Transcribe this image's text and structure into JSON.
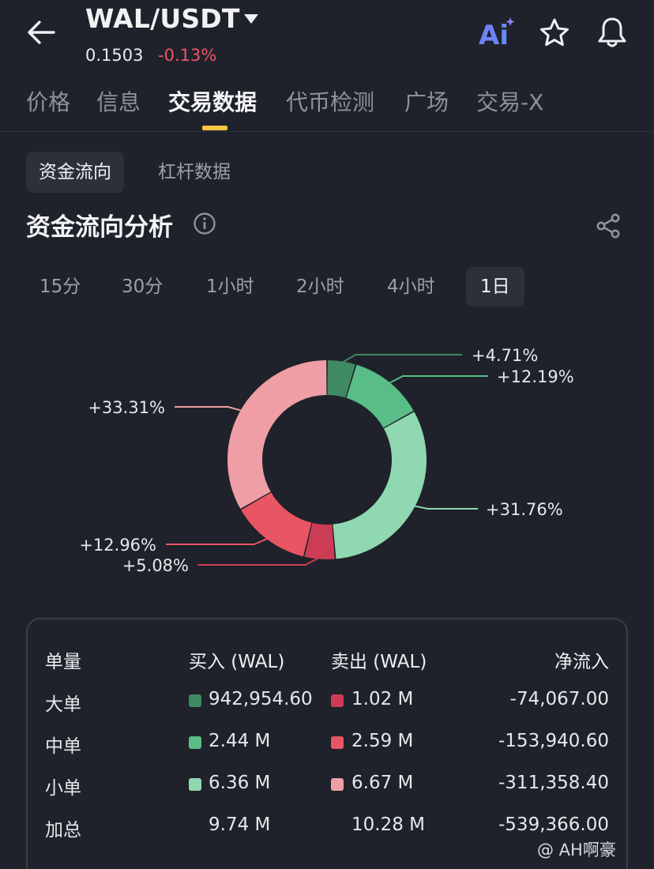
{
  "header": {
    "pair": "WAL/USDT",
    "price": "0.1503",
    "change": "-0.13%",
    "ai_label": "Ai"
  },
  "tabs": [
    "价格",
    "信息",
    "交易数据",
    "代币检测",
    "广场",
    "交易-X"
  ],
  "active_tab": "交易数据",
  "subtabs": [
    "资金流向",
    "杠杆数据"
  ],
  "section_title": "资金流向分析",
  "intervals": [
    "15分",
    "30分",
    "1小时",
    "2小时",
    "4小时",
    "1日"
  ],
  "active_interval": "1日",
  "colors": {
    "large_buy": "#3f8a63",
    "medium_buy": "#58bd86",
    "small_buy": "#8fd8b1",
    "large_sell": "#cc3d55",
    "medium_sell": "#e85563",
    "small_sell": "#ef9ea5",
    "accent": "#f5c542"
  },
  "chart_data": {
    "type": "pie",
    "slices": [
      {
        "label": "+4.71%",
        "value": 4.71,
        "color": "#3f8a63"
      },
      {
        "label": "+12.19%",
        "value": 12.19,
        "color": "#58bd86"
      },
      {
        "label": "+31.76%",
        "value": 31.76,
        "color": "#8fd8b1"
      },
      {
        "label": "+5.08%",
        "value": 5.08,
        "color": "#cc3d55"
      },
      {
        "label": "+12.96%",
        "value": 12.96,
        "color": "#e85563"
      },
      {
        "label": "+33.31%",
        "value": 33.31,
        "color": "#ef9ea5"
      }
    ]
  },
  "table": {
    "headers": [
      "单量",
      "买入 (WAL)",
      "卖出 (WAL)",
      "净流入"
    ],
    "rows": [
      {
        "label": "大单",
        "buy": "942,954.60",
        "sell": "1.02 M",
        "net": "-74,067.00"
      },
      {
        "label": "中单",
        "buy": "2.44 M",
        "sell": "2.59 M",
        "net": "-153,940.60"
      },
      {
        "label": "小单",
        "buy": "6.36 M",
        "sell": "6.67 M",
        "net": "-311,358.40"
      },
      {
        "label": "加总",
        "buy": "9.74 M",
        "sell": "10.28 M",
        "net": "-539,366.00"
      }
    ]
  },
  "watermark": "@ AH啊豪"
}
